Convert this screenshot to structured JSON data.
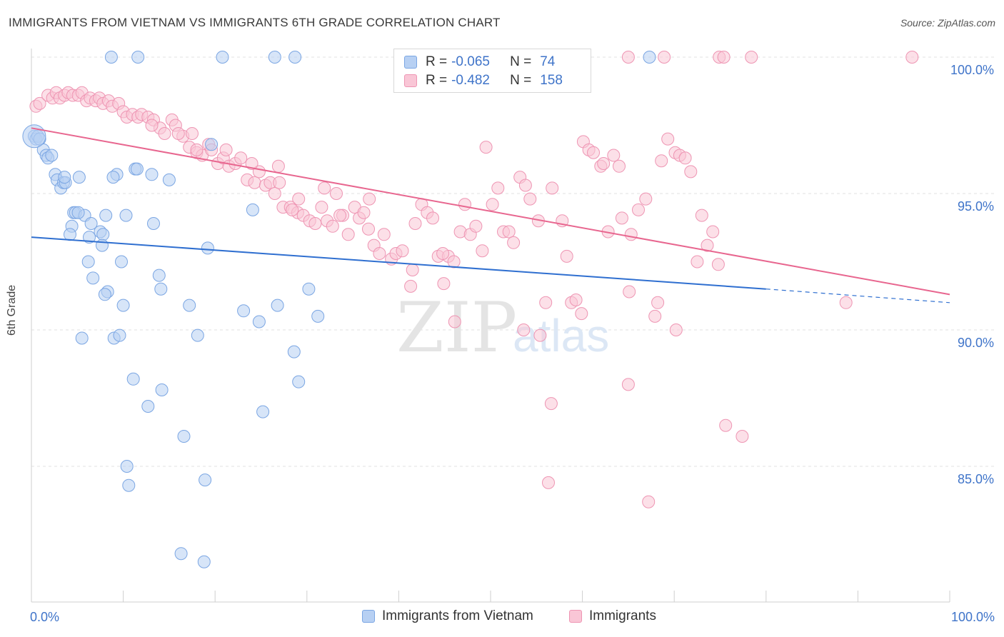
{
  "title": "IMMIGRANTS FROM VIETNAM VS IMMIGRANTS 6TH GRADE CORRELATION CHART",
  "source": "Source: ZipAtlas.com",
  "watermark": {
    "zip": "ZIP",
    "atlas": "atlas"
  },
  "legend_top": {
    "rows": [
      {
        "r_label": "R =",
        "r_value": "-0.065",
        "n_label": "N =",
        "n_value": "74"
      },
      {
        "r_label": "R =",
        "r_value": "-0.482",
        "n_label": "N =",
        "n_value": "158"
      }
    ]
  },
  "colors": {
    "blue_fill": "#b7d0f3",
    "blue_stroke": "#7ba6e3",
    "blue_line": "#2f6fd0",
    "pink_fill": "#f9c6d6",
    "pink_stroke": "#ee95b3",
    "pink_line": "#e8668f",
    "tick_label": "#3f74c9",
    "grid": "#e2e2e2"
  },
  "chart_data": {
    "type": "scatter",
    "title": "IMMIGRANTS FROM VIETNAM VS IMMIGRANTS 6TH GRADE CORRELATION CHART",
    "xlabel": "",
    "ylabel": "6th Grade",
    "xlim": [
      0,
      100
    ],
    "ylim": [
      80.5,
      100.5
    ],
    "x_tick_labels": [
      "0.0%",
      "100.0%"
    ],
    "y_ticks": [
      {
        "value": 85,
        "label": "85.0%"
      },
      {
        "value": 90,
        "label": "90.0%"
      },
      {
        "value": 95,
        "label": "95.0%"
      },
      {
        "value": 100,
        "label": "100.0%"
      }
    ],
    "grid": "horizontal dashed",
    "legend_position": "bottom",
    "series": [
      {
        "name": "Immigrants from Vietnam",
        "color": "#b7d0f3",
        "trend": {
          "x": [
            0,
            80
          ],
          "y": [
            93.4,
            91.5
          ],
          "dashed_to": [
            100,
            91.0
          ]
        },
        "points": [
          [
            0.3,
            97.1
          ],
          [
            0.5,
            97.0
          ],
          [
            0.7,
            97.1
          ],
          [
            0.9,
            97.0
          ],
          [
            1.3,
            96.6
          ],
          [
            1.6,
            96.4
          ],
          [
            1.8,
            96.3
          ],
          [
            2.2,
            96.4
          ],
          [
            2.6,
            95.7
          ],
          [
            2.8,
            95.5
          ],
          [
            3.2,
            95.2
          ],
          [
            3.5,
            95.4
          ],
          [
            3.7,
            95.4
          ],
          [
            5.2,
            95.6
          ],
          [
            9.3,
            95.7
          ],
          [
            11.3,
            95.9
          ],
          [
            11.5,
            95.9
          ],
          [
            13.1,
            95.7
          ],
          [
            15.0,
            95.5
          ],
          [
            4.6,
            94.3
          ],
          [
            4.8,
            94.3
          ],
          [
            5.8,
            94.2
          ],
          [
            8.1,
            94.2
          ],
          [
            10.3,
            94.2
          ],
          [
            4.4,
            93.8
          ],
          [
            6.5,
            93.9
          ],
          [
            7.5,
            93.6
          ],
          [
            7.8,
            93.5
          ],
          [
            4.2,
            93.5
          ],
          [
            6.3,
            93.4
          ],
          [
            13.3,
            93.9
          ],
          [
            7.7,
            93.1
          ],
          [
            24.1,
            94.4
          ],
          [
            19.2,
            93.0
          ],
          [
            6.2,
            92.5
          ],
          [
            9.8,
            92.5
          ],
          [
            6.7,
            91.9
          ],
          [
            13.9,
            92.0
          ],
          [
            14.1,
            91.5
          ],
          [
            8.3,
            91.4
          ],
          [
            8.0,
            91.3
          ],
          [
            10.0,
            90.9
          ],
          [
            17.2,
            90.9
          ],
          [
            23.1,
            90.7
          ],
          [
            26.8,
            90.9
          ],
          [
            30.2,
            91.5
          ],
          [
            31.2,
            90.5
          ],
          [
            24.8,
            90.3
          ],
          [
            5.5,
            89.7
          ],
          [
            9.0,
            89.7
          ],
          [
            9.6,
            89.8
          ],
          [
            18.1,
            89.8
          ],
          [
            28.6,
            89.2
          ],
          [
            29.1,
            88.1
          ],
          [
            11.1,
            88.2
          ],
          [
            14.2,
            87.8
          ],
          [
            12.7,
            87.2
          ],
          [
            25.2,
            87.0
          ],
          [
            16.6,
            86.1
          ],
          [
            10.4,
            85.0
          ],
          [
            10.6,
            84.3
          ],
          [
            18.9,
            84.5
          ],
          [
            16.3,
            81.8
          ],
          [
            18.8,
            81.5
          ],
          [
            8.7,
            100.0
          ],
          [
            11.6,
            100.0
          ],
          [
            20.8,
            100.0
          ],
          [
            26.5,
            100.0
          ],
          [
            28.7,
            100.0
          ],
          [
            67.3,
            100.0
          ],
          [
            19.6,
            96.8
          ],
          [
            3.6,
            95.6
          ],
          [
            5.1,
            94.3
          ],
          [
            8.9,
            95.6
          ]
        ]
      },
      {
        "name": "Immigrants",
        "color": "#f9c6d6",
        "trend": {
          "x": [
            0,
            100
          ],
          "y": [
            97.4,
            91.3
          ]
        },
        "points": [
          [
            0.5,
            98.2
          ],
          [
            0.9,
            98.3
          ],
          [
            1.8,
            98.6
          ],
          [
            2.3,
            98.5
          ],
          [
            2.7,
            98.7
          ],
          [
            3.1,
            98.5
          ],
          [
            3.6,
            98.6
          ],
          [
            4.0,
            98.7
          ],
          [
            4.5,
            98.6
          ],
          [
            5.1,
            98.6
          ],
          [
            5.5,
            98.7
          ],
          [
            6.0,
            98.4
          ],
          [
            6.4,
            98.5
          ],
          [
            7.0,
            98.4
          ],
          [
            7.4,
            98.5
          ],
          [
            7.8,
            98.3
          ],
          [
            8.4,
            98.4
          ],
          [
            8.8,
            98.2
          ],
          [
            9.5,
            98.3
          ],
          [
            10.0,
            98.0
          ],
          [
            10.4,
            97.8
          ],
          [
            11.0,
            97.9
          ],
          [
            11.6,
            97.8
          ],
          [
            12.0,
            97.9
          ],
          [
            12.7,
            97.8
          ],
          [
            13.3,
            97.7
          ],
          [
            14.0,
            97.4
          ],
          [
            14.5,
            97.2
          ],
          [
            15.3,
            97.7
          ],
          [
            15.7,
            97.5
          ],
          [
            16.5,
            97.1
          ],
          [
            17.2,
            96.7
          ],
          [
            17.5,
            97.2
          ],
          [
            18.0,
            96.5
          ],
          [
            18.6,
            96.4
          ],
          [
            19.3,
            96.8
          ],
          [
            19.6,
            96.6
          ],
          [
            20.3,
            96.1
          ],
          [
            20.9,
            96.3
          ],
          [
            21.5,
            96.0
          ],
          [
            22.2,
            96.1
          ],
          [
            22.8,
            96.3
          ],
          [
            23.5,
            95.5
          ],
          [
            24.3,
            95.4
          ],
          [
            24.8,
            95.8
          ],
          [
            25.5,
            95.3
          ],
          [
            26.0,
            95.4
          ],
          [
            26.5,
            95.0
          ],
          [
            27.0,
            95.4
          ],
          [
            27.4,
            94.5
          ],
          [
            28.2,
            94.5
          ],
          [
            29.0,
            94.3
          ],
          [
            29.6,
            94.2
          ],
          [
            30.3,
            94.0
          ],
          [
            30.9,
            93.9
          ],
          [
            31.6,
            94.5
          ],
          [
            32.2,
            94.0
          ],
          [
            32.8,
            93.8
          ],
          [
            33.2,
            95.0
          ],
          [
            33.9,
            94.2
          ],
          [
            34.5,
            93.5
          ],
          [
            35.2,
            94.5
          ],
          [
            35.7,
            94.1
          ],
          [
            36.2,
            94.3
          ],
          [
            36.8,
            94.8
          ],
          [
            37.3,
            93.1
          ],
          [
            37.9,
            92.8
          ],
          [
            38.4,
            93.5
          ],
          [
            39.2,
            92.6
          ],
          [
            39.7,
            92.8
          ],
          [
            40.4,
            92.9
          ],
          [
            41.3,
            91.6
          ],
          [
            41.8,
            93.9
          ],
          [
            42.5,
            94.6
          ],
          [
            43.1,
            94.3
          ],
          [
            43.7,
            94.1
          ],
          [
            44.3,
            92.7
          ],
          [
            44.9,
            91.7
          ],
          [
            45.4,
            92.7
          ],
          [
            46.0,
            92.5
          ],
          [
            46.7,
            93.6
          ],
          [
            47.2,
            94.6
          ],
          [
            47.8,
            93.5
          ],
          [
            48.4,
            93.8
          ],
          [
            49.1,
            92.9
          ],
          [
            49.5,
            96.7
          ],
          [
            50.2,
            94.6
          ],
          [
            50.8,
            95.2
          ],
          [
            51.4,
            93.6
          ],
          [
            52.0,
            93.6
          ],
          [
            52.5,
            93.2
          ],
          [
            53.2,
            95.6
          ],
          [
            53.8,
            95.3
          ],
          [
            54.3,
            94.8
          ],
          [
            55.2,
            94.0
          ],
          [
            56.7,
            95.2
          ],
          [
            57.8,
            94.0
          ],
          [
            58.3,
            92.7
          ],
          [
            58.8,
            91.0
          ],
          [
            59.3,
            91.1
          ],
          [
            60.1,
            96.9
          ],
          [
            60.7,
            96.6
          ],
          [
            61.2,
            96.5
          ],
          [
            62.0,
            96.0
          ],
          [
            62.3,
            96.1
          ],
          [
            62.8,
            93.6
          ],
          [
            63.4,
            96.4
          ],
          [
            64.0,
            96.0
          ],
          [
            64.3,
            94.1
          ],
          [
            65.3,
            93.5
          ],
          [
            66.1,
            94.4
          ],
          [
            66.9,
            94.8
          ],
          [
            67.9,
            90.5
          ],
          [
            68.2,
            91.0
          ],
          [
            68.6,
            96.2
          ],
          [
            69.3,
            97.0
          ],
          [
            70.1,
            96.5
          ],
          [
            70.6,
            96.4
          ],
          [
            71.2,
            96.3
          ],
          [
            71.8,
            95.8
          ],
          [
            72.5,
            92.5
          ],
          [
            73.0,
            94.2
          ],
          [
            73.6,
            93.1
          ],
          [
            74.2,
            93.6
          ],
          [
            74.8,
            92.4
          ],
          [
            59.9,
            90.6
          ],
          [
            56.0,
            91.0
          ],
          [
            55.4,
            89.8
          ],
          [
            53.6,
            90.0
          ],
          [
            56.6,
            87.3
          ],
          [
            65.1,
            91.4
          ],
          [
            65.0,
            88.0
          ],
          [
            70.2,
            90.0
          ],
          [
            75.6,
            86.5
          ],
          [
            77.4,
            86.1
          ],
          [
            56.3,
            84.4
          ],
          [
            67.2,
            83.7
          ],
          [
            88.7,
            91.0
          ],
          [
            46.1,
            90.3
          ],
          [
            41.5,
            92.2
          ],
          [
            44.8,
            92.8
          ],
          [
            36.7,
            93.7
          ],
          [
            33.6,
            94.2
          ],
          [
            29.1,
            94.8
          ],
          [
            31.9,
            95.2
          ],
          [
            28.4,
            94.4
          ],
          [
            26.9,
            96.0
          ],
          [
            24.0,
            96.1
          ],
          [
            21.2,
            96.6
          ],
          [
            18.0,
            96.6
          ],
          [
            16.0,
            97.2
          ],
          [
            13.1,
            97.5
          ],
          [
            65.0,
            100.0
          ],
          [
            68.9,
            100.0
          ],
          [
            74.9,
            100.0
          ],
          [
            75.4,
            100.0
          ],
          [
            78.4,
            100.0
          ],
          [
            95.9,
            100.0
          ]
        ]
      }
    ]
  },
  "legend_bottom": {
    "items": [
      {
        "label": "Immigrants from Vietnam"
      },
      {
        "label": "Immigrants"
      }
    ]
  }
}
